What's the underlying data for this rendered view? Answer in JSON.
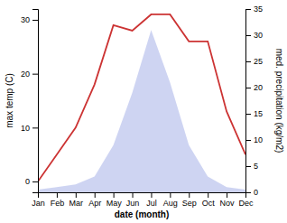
{
  "chart_data": {
    "type": "line",
    "x": [
      1,
      2,
      3,
      4,
      5,
      6,
      7,
      8,
      9,
      10,
      11,
      12
    ],
    "xlim": [
      1,
      12
    ],
    "xticks": [
      {
        "value": 1,
        "label": "Jan"
      },
      {
        "value": 2,
        "label": "Feb"
      },
      {
        "value": 3,
        "label": "Mar"
      },
      {
        "value": 4,
        "label": "Apr"
      },
      {
        "value": 5,
        "label": "May"
      },
      {
        "value": 6,
        "label": "Jun"
      },
      {
        "value": 7,
        "label": "Jul"
      },
      {
        "value": 8,
        "label": "Aug"
      },
      {
        "value": 9,
        "label": "Sep"
      },
      {
        "value": 10,
        "label": "Oct"
      },
      {
        "value": 11,
        "label": "Nov"
      },
      {
        "value": 12,
        "label": "Dec"
      }
    ],
    "xlabel": "date (month)",
    "ylabel": "max temp (C)",
    "y2label": "med. precipitation (kg/m2)",
    "ylim": [
      -2,
      32
    ],
    "yticks": [
      0,
      10,
      20,
      30
    ],
    "y2lim": [
      0,
      35
    ],
    "y2ticks": [
      0,
      5,
      10,
      15,
      20,
      25,
      30,
      35
    ],
    "grid": false,
    "series": [
      {
        "type": "area",
        "axis": "y2",
        "color": "#c5cdf0",
        "values": [
          0.5,
          1.0,
          1.5,
          3,
          9,
          19,
          31,
          21,
          9,
          3,
          1.0,
          0.5
        ]
      },
      {
        "type": "line",
        "color": "#cc3333",
        "values": [
          0,
          5,
          10,
          18,
          29,
          28,
          31,
          31,
          26,
          26,
          13,
          5
        ]
      }
    ]
  }
}
